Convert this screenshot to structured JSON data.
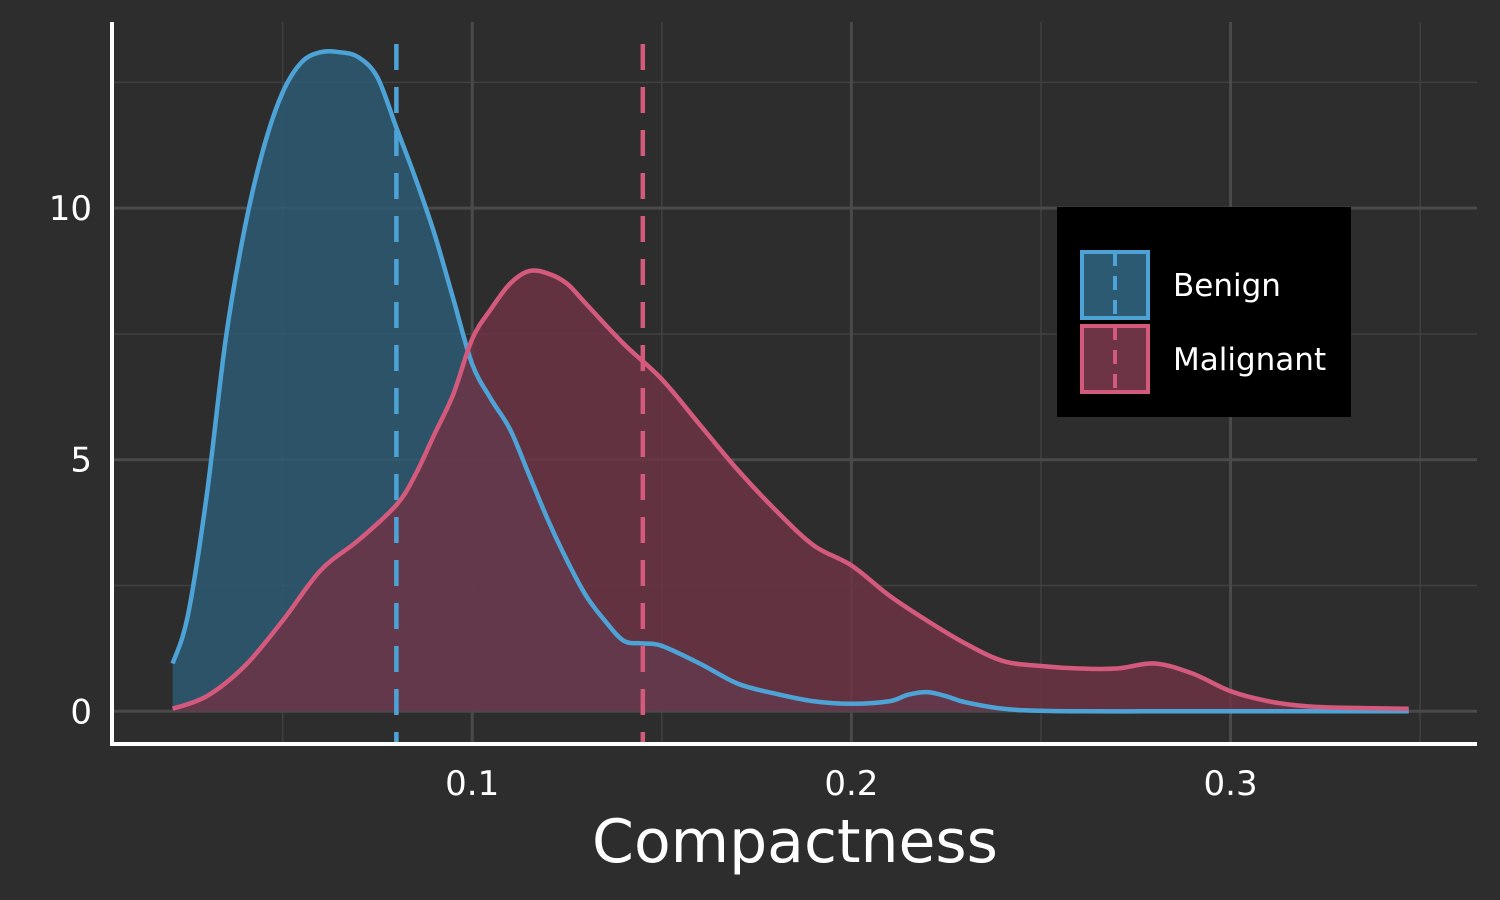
{
  "chart_data": {
    "type": "area",
    "title": "",
    "xlabel": "Compactness",
    "ylabel": "",
    "xlim": [
      0.005,
      0.365
    ],
    "ylim": [
      -0.65,
      13.7
    ],
    "x_ticks": [
      0.1,
      0.2,
      0.3
    ],
    "x_tick_labels": [
      "0.1",
      "0.2",
      "0.3"
    ],
    "y_ticks": [
      0,
      5,
      10
    ],
    "y_tick_labels": [
      "0",
      "5",
      "10"
    ],
    "grid": true,
    "legend_position": "right",
    "series": [
      {
        "name": "Benign",
        "color": "#4ea3d6",
        "fill": "#2d5a73",
        "mean": 0.08,
        "x": [
          0.021,
          0.025,
          0.03,
          0.035,
          0.04,
          0.045,
          0.05,
          0.055,
          0.06,
          0.065,
          0.07,
          0.075,
          0.08,
          0.085,
          0.09,
          0.095,
          0.1,
          0.105,
          0.11,
          0.115,
          0.12,
          0.125,
          0.13,
          0.135,
          0.14,
          0.145,
          0.15,
          0.16,
          0.17,
          0.18,
          0.19,
          0.2,
          0.21,
          0.215,
          0.22,
          0.225,
          0.23,
          0.24,
          0.25,
          0.26,
          0.28,
          0.3,
          0.32,
          0.34,
          0.347
        ],
        "y": [
          0.95,
          1.9,
          4.3,
          7.4,
          9.6,
          11.2,
          12.3,
          12.9,
          13.1,
          13.1,
          13.0,
          12.6,
          11.6,
          10.6,
          9.5,
          8.2,
          6.9,
          6.2,
          5.6,
          4.7,
          3.8,
          3.0,
          2.3,
          1.8,
          1.4,
          1.35,
          1.3,
          0.95,
          0.55,
          0.35,
          0.2,
          0.15,
          0.2,
          0.33,
          0.38,
          0.3,
          0.18,
          0.05,
          0.01,
          0.0,
          0.0,
          0.0,
          0.0,
          0.0,
          0.0
        ]
      },
      {
        "name": "Malignant",
        "color": "#d45a7d",
        "fill": "#6d3445",
        "mean": 0.145,
        "x": [
          0.021,
          0.03,
          0.04,
          0.05,
          0.06,
          0.07,
          0.08,
          0.085,
          0.09,
          0.095,
          0.1,
          0.105,
          0.11,
          0.115,
          0.12,
          0.125,
          0.13,
          0.14,
          0.15,
          0.16,
          0.17,
          0.18,
          0.19,
          0.2,
          0.21,
          0.22,
          0.23,
          0.24,
          0.25,
          0.26,
          0.27,
          0.28,
          0.29,
          0.3,
          0.31,
          0.32,
          0.33,
          0.347
        ],
        "y": [
          0.05,
          0.3,
          0.9,
          1.8,
          2.8,
          3.4,
          4.1,
          4.7,
          5.5,
          6.3,
          7.4,
          8.0,
          8.5,
          8.75,
          8.7,
          8.5,
          8.1,
          7.3,
          6.6,
          5.7,
          4.8,
          4.0,
          3.3,
          2.9,
          2.3,
          1.8,
          1.35,
          1.0,
          0.9,
          0.85,
          0.85,
          0.95,
          0.75,
          0.4,
          0.2,
          0.1,
          0.07,
          0.05
        ]
      }
    ]
  }
}
